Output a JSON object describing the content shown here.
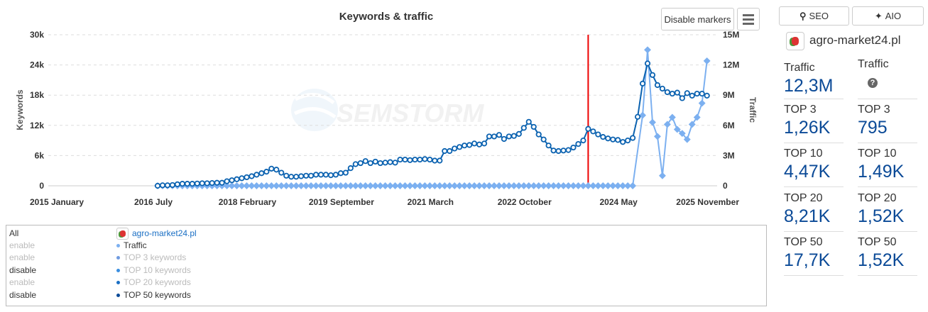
{
  "chart_title": "Keywords & traffic",
  "toolbar": {
    "disable_markers": "Disable markers",
    "menu_icon": "hamburger-icon"
  },
  "watermark": "SEMSTORM",
  "chart_data": {
    "type": "line",
    "title": "Keywords & traffic",
    "ylabel": "Keywords",
    "y2label": "Traffic",
    "ylim": [
      0,
      30000
    ],
    "y2lim": [
      0,
      15000000
    ],
    "yticks": [
      "0",
      "6k",
      "12k",
      "18k",
      "24k",
      "30k"
    ],
    "y2ticks": [
      "0",
      "3M",
      "6M",
      "9M",
      "12M",
      "15M"
    ],
    "xticks": [
      {
        "label": "2015 January",
        "month": 0
      },
      {
        "label": "2016 July",
        "month": 18
      },
      {
        "label": "2018 February",
        "month": 37
      },
      {
        "label": "2019 September",
        "month": 56
      },
      {
        "label": "2021 March",
        "month": 74
      },
      {
        "label": "2022 October",
        "month": 93
      },
      {
        "label": "2024 May",
        "month": 112
      },
      {
        "label": "2025 November",
        "month": 130
      }
    ],
    "x_start": "2016-07",
    "x_start_month": 18,
    "x_unit": "month",
    "plot_line_month": 105,
    "grid": true,
    "series": [
      {
        "name": "TOP 50 keywords",
        "axis": "left",
        "unit": "k",
        "color": "#0b62b0",
        "values": [
          0,
          0.1,
          0.1,
          0.15,
          0.3,
          0.4,
          0.4,
          0.4,
          0.45,
          0.5,
          0.5,
          0.55,
          0.6,
          0.6,
          0.9,
          1.1,
          1.3,
          1.5,
          1.7,
          1.9,
          2.2,
          2.5,
          2.8,
          3.4,
          3.2,
          2.6,
          2.0,
          1.8,
          1.8,
          1.9,
          2.0,
          2.0,
          2.2,
          2.2,
          2.2,
          2.1,
          2.2,
          2.5,
          2.6,
          3.5,
          4.3,
          4.5,
          4.9,
          4.5,
          4.8,
          4.5,
          4.6,
          4.7,
          4.6,
          5.2,
          5.2,
          5.1,
          5.2,
          5.2,
          5.3,
          5.2,
          5.0,
          5.0,
          6.9,
          6.9,
          7.4,
          7.7,
          8.0,
          8.1,
          8.4,
          8.2,
          8.4,
          9.8,
          9.8,
          10.1,
          9.3,
          9.8,
          9.9,
          10.3,
          11.5,
          12.7,
          11.7,
          10.2,
          9.2,
          8.0,
          7.0,
          6.9,
          7.0,
          7.1,
          7.6,
          8.3,
          9.0,
          11.3,
          10.8,
          10.2,
          9.7,
          9.4,
          9.2,
          9.1,
          8.7,
          9.0,
          9.5,
          13.7,
          20.3,
          24.3,
          22.0,
          20.0,
          19.3,
          18.6,
          18.3,
          18.5,
          17.4,
          18.4,
          17.9,
          18.3,
          18.3,
          17.9
        ]
      },
      {
        "name": "Traffic",
        "axis": "right",
        "unit": "M",
        "color": "#7cb0f0",
        "values": [
          0,
          0,
          0,
          0,
          0,
          0,
          0,
          0,
          0,
          0,
          0,
          0,
          0,
          0,
          0,
          0,
          0,
          0,
          0,
          0,
          0,
          0,
          0,
          0,
          0,
          0,
          0,
          0,
          0,
          0,
          0,
          0,
          0,
          0,
          0,
          0,
          0,
          0,
          0,
          0,
          0,
          0,
          0,
          0,
          0,
          0,
          0,
          0,
          0,
          0,
          0,
          0,
          0,
          0,
          0,
          0,
          0,
          0,
          0,
          0,
          0,
          0,
          0,
          0,
          0,
          0,
          0,
          0,
          0,
          0,
          0,
          0,
          0,
          0,
          0,
          0,
          0,
          0,
          0,
          0,
          0,
          0,
          0,
          0,
          0,
          0,
          0,
          0,
          0,
          0,
          0,
          0,
          0,
          0,
          0,
          0,
          0,
          null,
          7.0,
          13.5,
          6.3,
          4.9,
          1.0,
          6.1,
          6.8,
          5.6,
          5.2,
          4.6,
          6.1,
          6.8,
          8.2,
          12.4
        ]
      }
    ]
  },
  "legend": {
    "all": "All",
    "domain": "agro-market24.pl",
    "rows": [
      {
        "toggle": "enable",
        "toggle_on": false,
        "label": "Traffic",
        "label_on": true,
        "color": "#7cb0f0"
      },
      {
        "toggle": "enable",
        "toggle_on": false,
        "label": "TOP 3 keywords",
        "label_on": false,
        "color": "#6f9be0"
      },
      {
        "toggle": "disable",
        "toggle_on": true,
        "label": "TOP 10 keywords",
        "label_on": false,
        "color": "#3a8ee0"
      },
      {
        "toggle": "enable",
        "toggle_on": false,
        "label": "TOP 20 keywords",
        "label_on": false,
        "color": "#1a6fc4"
      },
      {
        "toggle": "disable",
        "toggle_on": true,
        "label": "TOP 50 keywords",
        "label_on": true,
        "color": "#0b4a97"
      }
    ]
  },
  "side": {
    "seo_label": "SEO",
    "aio_label": "AIO",
    "domain": "agro-market24.pl",
    "seo_metrics": [
      {
        "label": "Traffic",
        "value": "12,3M"
      },
      {
        "label": "TOP 3",
        "value": "1,26K"
      },
      {
        "label": "TOP 10",
        "value": "4,47K"
      },
      {
        "label": "TOP 20",
        "value": "8,21K"
      },
      {
        "label": "TOP 50",
        "value": "17,7K"
      }
    ],
    "aio_metrics": [
      {
        "label": "Traffic",
        "value": null,
        "icon": "question-icon"
      },
      {
        "label": "TOP 3",
        "value": "795"
      },
      {
        "label": "TOP 10",
        "value": "1,49K"
      },
      {
        "label": "TOP 20",
        "value": "1,52K"
      },
      {
        "label": "TOP 50",
        "value": "1,52K"
      }
    ],
    "accent": "#0b4a97"
  }
}
